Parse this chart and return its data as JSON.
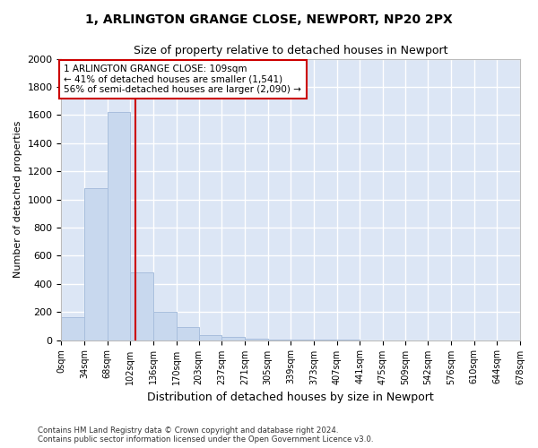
{
  "title_line1": "1, ARLINGTON GRANGE CLOSE, NEWPORT, NP20 2PX",
  "title_line2": "Size of property relative to detached houses in Newport",
  "xlabel": "Distribution of detached houses by size in Newport",
  "ylabel": "Number of detached properties",
  "bar_color": "#c8d8ee",
  "bar_edge_color": "#a8bedd",
  "background_color": "#dce6f5",
  "grid_color": "#ffffff",
  "fig_background": "#ffffff",
  "bin_edges": [
    0,
    34,
    68,
    102,
    136,
    170,
    203,
    237,
    271,
    305,
    339,
    373,
    407,
    441,
    475,
    509,
    542,
    576,
    610,
    644,
    678
  ],
  "bin_labels": [
    "0sqm",
    "34sqm",
    "68sqm",
    "102sqm",
    "136sqm",
    "170sqm",
    "203sqm",
    "237sqm",
    "271sqm",
    "305sqm",
    "339sqm",
    "373sqm",
    "407sqm",
    "441sqm",
    "475sqm",
    "509sqm",
    "542sqm",
    "576sqm",
    "610sqm",
    "644sqm",
    "678sqm"
  ],
  "bar_heights": [
    160,
    1080,
    1620,
    480,
    200,
    95,
    35,
    22,
    13,
    5,
    3,
    2,
    1,
    0,
    0,
    0,
    0,
    0,
    0,
    0
  ],
  "property_size": 109,
  "annotation_title": "1 ARLINGTON GRANGE CLOSE: 109sqm",
  "annotation_line2": "← 41% of detached houses are smaller (1,541)",
  "annotation_line3": "56% of semi-detached houses are larger (2,090) →",
  "red_line_color": "#cc0000",
  "annotation_box_color": "#ffffff",
  "annotation_box_edge": "#cc0000",
  "ylim": [
    0,
    2000
  ],
  "yticks": [
    0,
    200,
    400,
    600,
    800,
    1000,
    1200,
    1400,
    1600,
    1800,
    2000
  ],
  "footer_line1": "Contains HM Land Registry data © Crown copyright and database right 2024.",
  "footer_line2": "Contains public sector information licensed under the Open Government Licence v3.0."
}
